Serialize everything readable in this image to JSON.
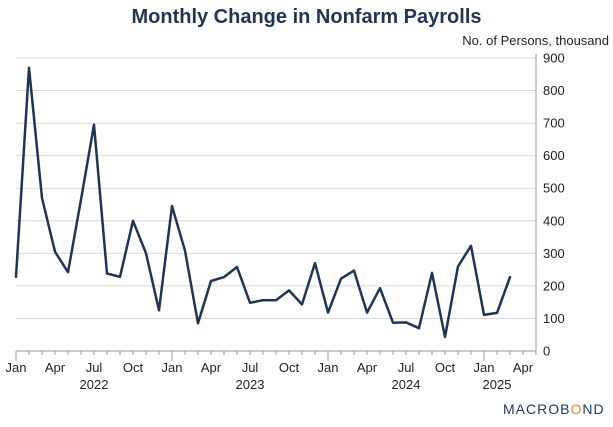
{
  "colors": {
    "line": "#1f3557",
    "grid": "#d9d9d9",
    "text": "#222222",
    "title": "#1f3557",
    "logo_accent": "#e08c2b"
  },
  "chart_data": {
    "type": "line",
    "title": "Monthly Change in Nonfarm Payrolls",
    "ylabel": "No. of Persons, thousand",
    "y_axis_side": "right",
    "ylim": [
      0,
      900
    ],
    "yticks": [
      0,
      100,
      200,
      300,
      400,
      500,
      600,
      700,
      800,
      900
    ],
    "grid": true,
    "x_start": "2022-01",
    "x_end": "2025-05",
    "x_month_labels": [
      {
        "month": "2022-01",
        "label": "Jan"
      },
      {
        "month": "2022-04",
        "label": "Apr"
      },
      {
        "month": "2022-07",
        "label": "Jul"
      },
      {
        "month": "2022-10",
        "label": "Oct"
      },
      {
        "month": "2023-01",
        "label": "Jan"
      },
      {
        "month": "2023-04",
        "label": "Apr"
      },
      {
        "month": "2023-07",
        "label": "Jul"
      },
      {
        "month": "2023-10",
        "label": "Oct"
      },
      {
        "month": "2024-01",
        "label": "Jan"
      },
      {
        "month": "2024-04",
        "label": "Apr"
      },
      {
        "month": "2024-07",
        "label": "Jul"
      },
      {
        "month": "2024-10",
        "label": "Oct"
      },
      {
        "month": "2025-01",
        "label": "Jan"
      },
      {
        "month": "2025-04",
        "label": "Apr"
      }
    ],
    "x_year_labels": [
      {
        "month": "2022-07",
        "label": "2022"
      },
      {
        "month": "2023-07",
        "label": "2023"
      },
      {
        "month": "2024-07",
        "label": "2024"
      },
      {
        "month": "2025-02",
        "label": "2025"
      }
    ],
    "series": [
      {
        "x": [
          "2022-01",
          "2022-02",
          "2022-03",
          "2022-04",
          "2022-05",
          "2022-06",
          "2022-07",
          "2022-08",
          "2022-09",
          "2022-10",
          "2022-11",
          "2022-12",
          "2023-01",
          "2023-02",
          "2023-03",
          "2023-04",
          "2023-05",
          "2023-06",
          "2023-07",
          "2023-08",
          "2023-09",
          "2023-10",
          "2023-11",
          "2023-12",
          "2024-01",
          "2024-02",
          "2024-03",
          "2024-04",
          "2024-05",
          "2024-06",
          "2024-07",
          "2024-08",
          "2024-09",
          "2024-10",
          "2024-11",
          "2024-12",
          "2025-01",
          "2025-02",
          "2025-03"
        ],
        "values": [
          228,
          870,
          470,
          305,
          242,
          465,
          695,
          238,
          228,
          400,
          300,
          125,
          445,
          308,
          85,
          215,
          227,
          258,
          148,
          156,
          156,
          186,
          143,
          270,
          118,
          222,
          247,
          118,
          193,
          87,
          88,
          70,
          240,
          43,
          260,
          323,
          111,
          117,
          227
        ]
      }
    ]
  },
  "logo": {
    "text_main": "MACROB",
    "text_accent": "O",
    "text_tail": "ND"
  }
}
